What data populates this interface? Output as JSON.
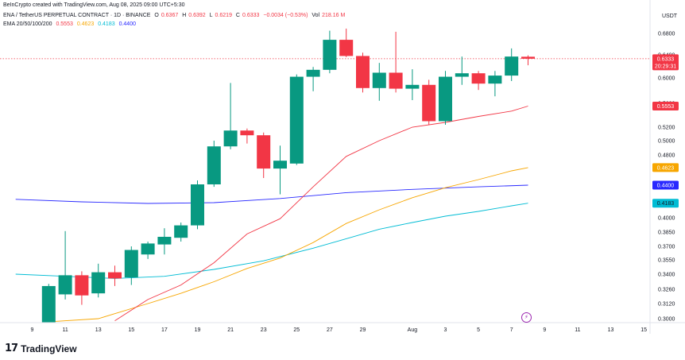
{
  "credit": "BeInCrypto created with TradingView.com, Aug 08, 2025 09:00 UTC+5:30",
  "header": {
    "symbol": "ENA / TetherUS PERPETUAL CONTRACT · 1D · BINANCE",
    "open_label": "O",
    "open": "0.6367",
    "high_label": "H",
    "high": "0.6392",
    "low_label": "L",
    "low": "0.6219",
    "close_label": "C",
    "close": "0.6333",
    "change": "−0.0034 (−0.53%)",
    "vol_label": "Vol",
    "vol": "218.16 M"
  },
  "ema_legend": {
    "label": "EMA 20/50/100/200",
    "ema20": "0.5553",
    "ema50": "0.4623",
    "ema100": "0.4183",
    "ema200": "0.4400"
  },
  "currency": "USDT",
  "price_badges": {
    "last": "0.6333",
    "countdown": "20:29:31",
    "ema20": "0.5553",
    "ema50": "0.4623",
    "ema100": "0.4183",
    "ema200": "0.4400"
  },
  "colors": {
    "up": "#089981",
    "down": "#f23645",
    "ema20": "#f23645",
    "ema50": "#f7a600",
    "ema100": "#00bcd4",
    "ema200": "#2929ff"
  },
  "logo_text": "TradingView",
  "chart_data": {
    "type": "candlestick",
    "y_ticks": [
      0.68,
      0.64,
      0.6,
      0.56,
      0.52,
      0.5,
      0.48,
      0.46,
      0.44,
      0.42,
      0.4,
      0.385,
      0.37,
      0.355,
      0.34,
      0.326,
      0.312,
      0.3
    ],
    "y_tick_labels": [
      "0.6800",
      "0.6400",
      "0.6000",
      "0.5600",
      "0.5200",
      "0.5000",
      "0.4800",
      "0.4600",
      "0.4400",
      "0.4200",
      "0.4000",
      "0.3850",
      "0.3700",
      "0.3550",
      "0.3400",
      "0.3260",
      "0.3120",
      "0.3000"
    ],
    "x_ticks": [
      {
        "day": 9,
        "label": "9"
      },
      {
        "day": 11,
        "label": "11"
      },
      {
        "day": 13,
        "label": "13"
      },
      {
        "day": 15,
        "label": "15"
      },
      {
        "day": 17,
        "label": "17"
      },
      {
        "day": 19,
        "label": "19"
      },
      {
        "day": 21,
        "label": "21"
      },
      {
        "day": 23,
        "label": "23"
      },
      {
        "day": 25,
        "label": "25"
      },
      {
        "day": 27,
        "label": "27"
      },
      {
        "day": 29,
        "label": "29"
      },
      {
        "day": 32,
        "label": "Aug"
      },
      {
        "day": 34,
        "label": "3"
      },
      {
        "day": 36,
        "label": "5"
      },
      {
        "day": 38,
        "label": "7"
      },
      {
        "day": 40,
        "label": "9"
      },
      {
        "day": 42,
        "label": "11"
      },
      {
        "day": 44,
        "label": "13"
      },
      {
        "day": 46,
        "label": "15"
      }
    ],
    "candles": [
      {
        "day": 10,
        "o": 0.284,
        "h": 0.331,
        "l": 0.279,
        "c": 0.329
      },
      {
        "day": 11,
        "o": 0.321,
        "h": 0.386,
        "l": 0.316,
        "c": 0.339
      },
      {
        "day": 12,
        "o": 0.339,
        "h": 0.343,
        "l": 0.311,
        "c": 0.32
      },
      {
        "day": 13,
        "o": 0.322,
        "h": 0.351,
        "l": 0.318,
        "c": 0.342
      },
      {
        "day": 14,
        "o": 0.342,
        "h": 0.349,
        "l": 0.329,
        "c": 0.336
      },
      {
        "day": 15,
        "o": 0.337,
        "h": 0.37,
        "l": 0.33,
        "c": 0.366
      },
      {
        "day": 16,
        "o": 0.361,
        "h": 0.375,
        "l": 0.356,
        "c": 0.373
      },
      {
        "day": 17,
        "o": 0.372,
        "h": 0.389,
        "l": 0.361,
        "c": 0.38
      },
      {
        "day": 18,
        "o": 0.379,
        "h": 0.395,
        "l": 0.375,
        "c": 0.392
      },
      {
        "day": 19,
        "o": 0.392,
        "h": 0.446,
        "l": 0.388,
        "c": 0.441
      },
      {
        "day": 20,
        "o": 0.441,
        "h": 0.5,
        "l": 0.438,
        "c": 0.492
      },
      {
        "day": 21,
        "o": 0.492,
        "h": 0.592,
        "l": 0.488,
        "c": 0.515
      },
      {
        "day": 22,
        "o": 0.515,
        "h": 0.518,
        "l": 0.496,
        "c": 0.508
      },
      {
        "day": 23,
        "o": 0.508,
        "h": 0.512,
        "l": 0.449,
        "c": 0.461
      },
      {
        "day": 24,
        "o": 0.461,
        "h": 0.493,
        "l": 0.429,
        "c": 0.472
      },
      {
        "day": 25,
        "o": 0.468,
        "h": 0.606,
        "l": 0.466,
        "c": 0.602
      },
      {
        "day": 26,
        "o": 0.602,
        "h": 0.619,
        "l": 0.579,
        "c": 0.614
      },
      {
        "day": 27,
        "o": 0.614,
        "h": 0.685,
        "l": 0.608,
        "c": 0.668
      },
      {
        "day": 28,
        "o": 0.668,
        "h": 0.693,
        "l": 0.636,
        "c": 0.638
      },
      {
        "day": 29,
        "o": 0.638,
        "h": 0.644,
        "l": 0.577,
        "c": 0.584
      },
      {
        "day": 30,
        "o": 0.584,
        "h": 0.626,
        "l": 0.564,
        "c": 0.609
      },
      {
        "day": 31,
        "o": 0.609,
        "h": 0.683,
        "l": 0.577,
        "c": 0.583
      },
      {
        "day": 32,
        "o": 0.583,
        "h": 0.615,
        "l": 0.565,
        "c": 0.589
      },
      {
        "day": 33,
        "o": 0.589,
        "h": 0.597,
        "l": 0.524,
        "c": 0.53
      },
      {
        "day": 34,
        "o": 0.53,
        "h": 0.612,
        "l": 0.524,
        "c": 0.602
      },
      {
        "day": 35,
        "o": 0.602,
        "h": 0.637,
        "l": 0.589,
        "c": 0.608
      },
      {
        "day": 36,
        "o": 0.608,
        "h": 0.612,
        "l": 0.581,
        "c": 0.591
      },
      {
        "day": 37,
        "o": 0.591,
        "h": 0.612,
        "l": 0.571,
        "c": 0.604
      },
      {
        "day": 38,
        "o": 0.604,
        "h": 0.652,
        "l": 0.595,
        "c": 0.637
      },
      {
        "day": 39,
        "o": 0.6367,
        "h": 0.6392,
        "l": 0.6219,
        "c": 0.6333
      }
    ],
    "ema20": [
      {
        "day": 14,
        "v": 0.298
      },
      {
        "day": 16,
        "v": 0.316
      },
      {
        "day": 18,
        "v": 0.33
      },
      {
        "day": 20,
        "v": 0.352
      },
      {
        "day": 22,
        "v": 0.383
      },
      {
        "day": 24,
        "v": 0.399
      },
      {
        "day": 26,
        "v": 0.438
      },
      {
        "day": 28,
        "v": 0.478
      },
      {
        "day": 30,
        "v": 0.5
      },
      {
        "day": 32,
        "v": 0.52
      },
      {
        "day": 34,
        "v": 0.528
      },
      {
        "day": 36,
        "v": 0.538
      },
      {
        "day": 38,
        "v": 0.547
      },
      {
        "day": 39,
        "v": 0.5553
      }
    ],
    "ema50": [
      {
        "day": 10,
        "v": 0.297
      },
      {
        "day": 13,
        "v": 0.3
      },
      {
        "day": 16,
        "v": 0.312
      },
      {
        "day": 18,
        "v": 0.322
      },
      {
        "day": 20,
        "v": 0.333
      },
      {
        "day": 22,
        "v": 0.346
      },
      {
        "day": 24,
        "v": 0.357
      },
      {
        "day": 26,
        "v": 0.374
      },
      {
        "day": 28,
        "v": 0.394
      },
      {
        "day": 30,
        "v": 0.41
      },
      {
        "day": 32,
        "v": 0.425
      },
      {
        "day": 34,
        "v": 0.437
      },
      {
        "day": 36,
        "v": 0.447
      },
      {
        "day": 38,
        "v": 0.458
      },
      {
        "day": 39,
        "v": 0.4623
      }
    ],
    "ema100": [
      {
        "day": 8,
        "v": 0.34
      },
      {
        "day": 11,
        "v": 0.338
      },
      {
        "day": 14,
        "v": 0.336
      },
      {
        "day": 17,
        "v": 0.338
      },
      {
        "day": 20,
        "v": 0.345
      },
      {
        "day": 23,
        "v": 0.354
      },
      {
        "day": 26,
        "v": 0.368
      },
      {
        "day": 28,
        "v": 0.378
      },
      {
        "day": 30,
        "v": 0.388
      },
      {
        "day": 32,
        "v": 0.395
      },
      {
        "day": 34,
        "v": 0.402
      },
      {
        "day": 36,
        "v": 0.408
      },
      {
        "day": 38,
        "v": 0.415
      },
      {
        "day": 39,
        "v": 0.4183
      }
    ],
    "ema200": [
      {
        "day": 8,
        "v": 0.423
      },
      {
        "day": 12,
        "v": 0.42
      },
      {
        "day": 16,
        "v": 0.418
      },
      {
        "day": 20,
        "v": 0.419
      },
      {
        "day": 24,
        "v": 0.424
      },
      {
        "day": 28,
        "v": 0.431
      },
      {
        "day": 32,
        "v": 0.435
      },
      {
        "day": 36,
        "v": 0.438
      },
      {
        "day": 39,
        "v": 0.44
      }
    ],
    "last_price": 0.6333
  }
}
